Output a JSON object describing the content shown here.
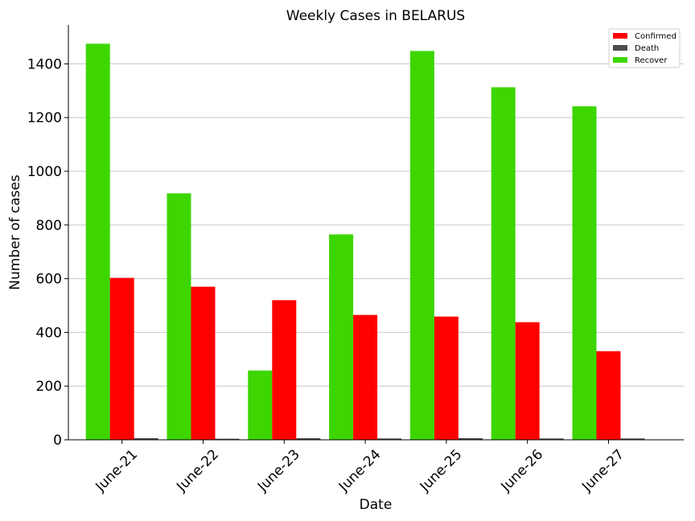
{
  "chart_data": {
    "type": "bar",
    "title": "Weekly Cases in BELARUS",
    "xlabel": "Date",
    "ylabel": "Number of cases",
    "categories": [
      "June-21",
      "June-22",
      "June-23",
      "June-24",
      "June-25",
      "June-26",
      "June-27"
    ],
    "series": [
      {
        "name": "Recover",
        "color": "#3dd600",
        "values": [
          1475,
          918,
          258,
          765,
          1448,
          1313,
          1242
        ]
      },
      {
        "name": "Confirmed",
        "color": "#ff0000",
        "values": [
          603,
          570,
          520,
          465,
          459,
          438,
          330
        ]
      },
      {
        "name": "Death",
        "color": "#4d4d4d",
        "values": [
          6,
          4,
          6,
          5,
          6,
          5,
          5
        ]
      }
    ],
    "legend_order": [
      "Confirmed",
      "Death",
      "Recover"
    ],
    "ylim": [
      0,
      1545
    ],
    "yticks": [
      0,
      200,
      400,
      600,
      800,
      1000,
      1200,
      1400
    ],
    "grid": "horizontal",
    "legend_position": "top-right"
  }
}
